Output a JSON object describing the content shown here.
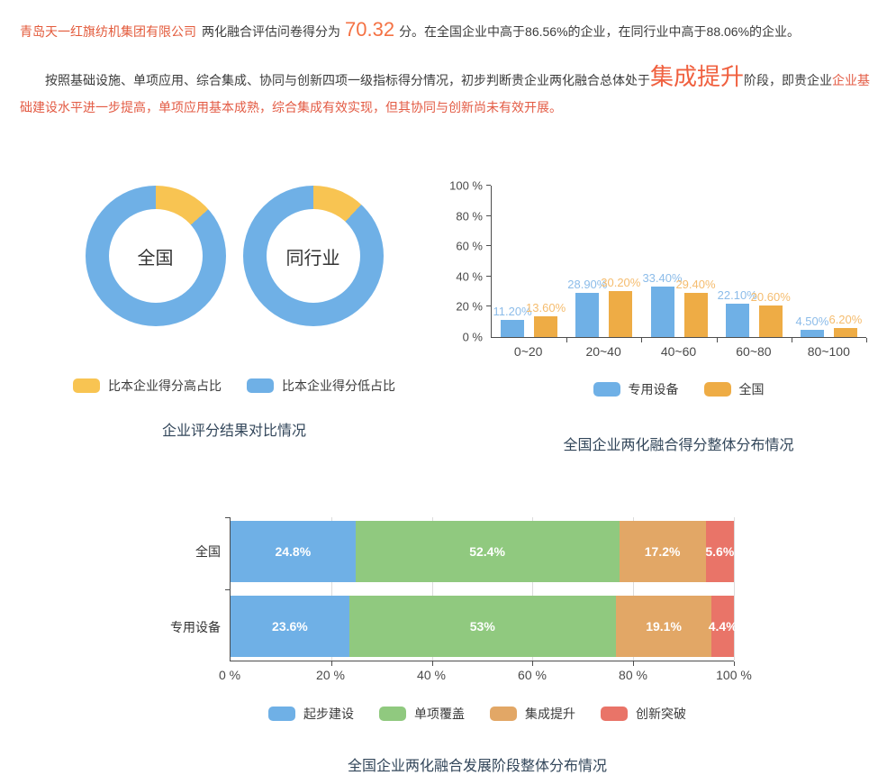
{
  "colors": {
    "blue": "#6fb0e6",
    "yellow": "#f8c452",
    "orange": "#eeac45",
    "green": "#90c97f",
    "tan": "#e2a766",
    "red": "#e97468",
    "blue_label": "#8cbce9",
    "orange_label": "#f5bc6e",
    "accent_orange": "#f47244",
    "red_text": "#e35b44",
    "title_color": "#32465a"
  },
  "intro": {
    "company": "青岛天一红旗纺机集团有限公司",
    "score_prefix": "两化融合评估问卷得分为",
    "score": "70.32",
    "score_suffix": "分。在全国企业中高于86.56%的企业，在同行业中高于88.06%的企业。",
    "para2_part1": "按照基础设施、单项应用、综合集成、协同与创新四项一级指标得分情况，初步判断贵企业两化融合总体处于",
    "stage": "集成提升",
    "para2_part2": "阶段，即贵企业",
    "para2_red": "企业基础建设水平进一步提高，单项应用基本成熟，综合集成有效实现，但其协同与创新尚未有效开展。"
  },
  "chart_data": [
    {
      "id": "score_compare",
      "type": "pie",
      "variant": "donut-pair",
      "title": "企业评分结果对比情况",
      "legend_position": "bottom",
      "legend": [
        {
          "label": "比本企业得分高占比",
          "color_key": "yellow"
        },
        {
          "label": "比本企业得分低占比",
          "color_key": "blue"
        }
      ],
      "donuts": [
        {
          "label": "全国",
          "slices": [
            {
              "name": "比本企业得分高占比",
              "value": 13.44,
              "color_key": "yellow"
            },
            {
              "name": "比本企业得分低占比",
              "value": 86.56,
              "color_key": "blue"
            }
          ]
        },
        {
          "label": "同行业",
          "slices": [
            {
              "name": "比本企业得分高占比",
              "value": 11.94,
              "color_key": "yellow"
            },
            {
              "name": "比本企业得分低占比",
              "value": 88.06,
              "color_key": "blue"
            }
          ]
        }
      ]
    },
    {
      "id": "score_distribution",
      "type": "bar",
      "title": "全国企业两化融合得分整体分布情况",
      "categories": [
        "0~20",
        "20~40",
        "40~60",
        "60~80",
        "80~100"
      ],
      "series": [
        {
          "name": "专用设备",
          "color_key": "blue",
          "label_color_key": "blue_label",
          "values": [
            11.2,
            28.9,
            33.4,
            22.1,
            4.5
          ],
          "labels": [
            "11.20%",
            "28.90%",
            "33.40%",
            "22.10%",
            "4.50%"
          ]
        },
        {
          "name": "全国",
          "color_key": "orange",
          "label_color_key": "orange_label",
          "values": [
            13.6,
            30.2,
            29.4,
            20.6,
            6.2
          ],
          "labels": [
            "13.60%",
            "30.20%",
            "29.40%",
            "20.60%",
            "6.20%"
          ]
        }
      ],
      "legend": [
        {
          "label": "专用设备",
          "color_key": "blue"
        },
        {
          "label": "全国",
          "color_key": "orange"
        }
      ],
      "ylim": [
        0,
        100
      ],
      "ytick_labels": [
        "0 %",
        "20 %",
        "40 %",
        "60 %",
        "80 %",
        "100 %"
      ],
      "grid": false,
      "legend_position": "bottom"
    },
    {
      "id": "stage_distribution",
      "type": "bar",
      "variant": "stacked-horizontal",
      "title": "全国企业两化融合发展阶段整体分布情况",
      "categories": [
        "全国",
        "专用设备"
      ],
      "series": [
        {
          "name": "起步建设",
          "color_key": "blue",
          "values": [
            24.8,
            23.6
          ],
          "labels": [
            "24.8%",
            "23.6%"
          ]
        },
        {
          "name": "单项覆盖",
          "color_key": "green",
          "values": [
            52.4,
            53
          ],
          "labels": [
            "52.4%",
            "53%"
          ]
        },
        {
          "name": "集成提升",
          "color_key": "tan",
          "values": [
            17.2,
            19.1
          ],
          "labels": [
            "17.2%",
            "19.1%"
          ]
        },
        {
          "name": "创新突破",
          "color_key": "red",
          "values": [
            5.6,
            4.4
          ],
          "labels": [
            "5.6%",
            "4.4%"
          ]
        }
      ],
      "legend": [
        {
          "label": "起步建设",
          "color_key": "blue"
        },
        {
          "label": "单项覆盖",
          "color_key": "green"
        },
        {
          "label": "集成提升",
          "color_key": "tan"
        },
        {
          "label": "创新突破",
          "color_key": "red"
        }
      ],
      "xlim": [
        0,
        100
      ],
      "xtick_labels": [
        "0 %",
        "20 %",
        "40 %",
        "60 %",
        "80 %",
        "100 %"
      ],
      "grid": true,
      "legend_position": "bottom"
    }
  ]
}
